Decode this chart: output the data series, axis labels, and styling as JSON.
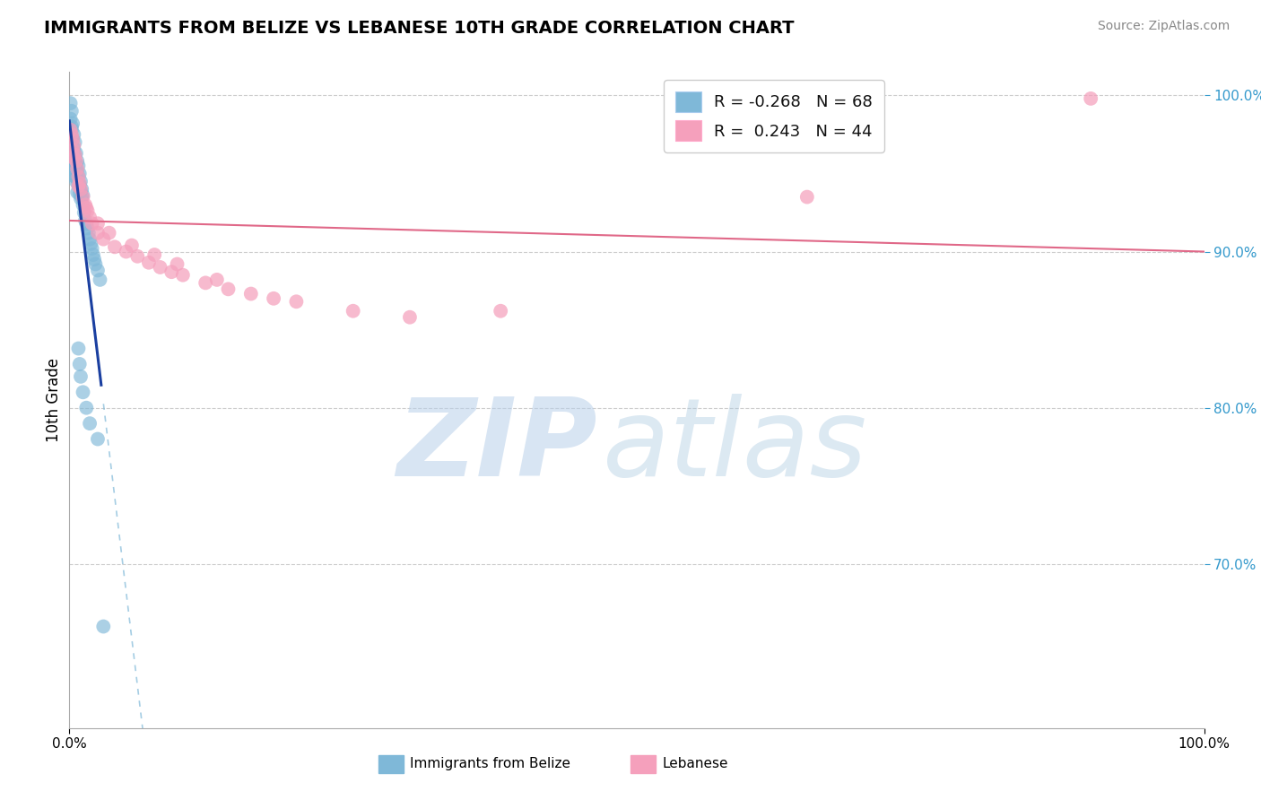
{
  "title": "IMMIGRANTS FROM BELIZE VS LEBANESE 10TH GRADE CORRELATION CHART",
  "source_text": "Source: ZipAtlas.com",
  "ylabel": "10th Grade",
  "xlim": [
    0.0,
    1.0
  ],
  "ylim": [
    0.595,
    1.015
  ],
  "y_ticks_right": [
    0.7,
    0.8,
    0.9,
    1.0
  ],
  "y_tick_labels_right": [
    "70.0%",
    "80.0%",
    "90.0%",
    "100.0%"
  ],
  "legend_r1": "R = -0.268",
  "legend_n1": "N = 68",
  "legend_r2": "R =  0.243",
  "legend_n2": "N = 44",
  "blue_color": "#7fb8d8",
  "pink_color": "#f5a0bc",
  "blue_line_color": "#1a3fa0",
  "pink_line_color": "#e06888",
  "grid_color": "#cccccc",
  "background_color": "#ffffff",
  "belize_x": [
    0.001,
    0.001,
    0.001,
    0.002,
    0.002,
    0.002,
    0.002,
    0.003,
    0.003,
    0.003,
    0.003,
    0.004,
    0.004,
    0.004,
    0.005,
    0.005,
    0.005,
    0.005,
    0.006,
    0.006,
    0.006,
    0.007,
    0.007,
    0.007,
    0.008,
    0.008,
    0.008,
    0.009,
    0.009,
    0.009,
    0.01,
    0.01,
    0.01,
    0.011,
    0.011,
    0.012,
    0.012,
    0.013,
    0.014,
    0.015,
    0.016,
    0.017,
    0.018,
    0.019,
    0.02,
    0.021,
    0.022,
    0.023,
    0.025,
    0.027,
    0.001,
    0.001,
    0.002,
    0.002,
    0.003,
    0.003,
    0.004,
    0.005,
    0.006,
    0.007,
    0.008,
    0.009,
    0.01,
    0.012,
    0.015,
    0.018,
    0.025,
    0.03
  ],
  "belize_y": [
    0.995,
    0.985,
    0.975,
    0.99,
    0.98,
    0.97,
    0.962,
    0.982,
    0.972,
    0.963,
    0.955,
    0.975,
    0.966,
    0.958,
    0.97,
    0.962,
    0.955,
    0.948,
    0.963,
    0.956,
    0.95,
    0.958,
    0.952,
    0.946,
    0.955,
    0.948,
    0.942,
    0.95,
    0.943,
    0.937,
    0.945,
    0.939,
    0.934,
    0.94,
    0.935,
    0.936,
    0.93,
    0.925,
    0.92,
    0.918,
    0.915,
    0.912,
    0.908,
    0.905,
    0.902,
    0.898,
    0.895,
    0.892,
    0.888,
    0.882,
    0.968,
    0.958,
    0.978,
    0.96,
    0.965,
    0.95,
    0.96,
    0.952,
    0.945,
    0.938,
    0.838,
    0.828,
    0.82,
    0.81,
    0.8,
    0.79,
    0.78,
    0.66
  ],
  "lebanese_x": [
    0.001,
    0.002,
    0.003,
    0.003,
    0.004,
    0.005,
    0.006,
    0.007,
    0.008,
    0.009,
    0.01,
    0.012,
    0.014,
    0.016,
    0.018,
    0.02,
    0.025,
    0.03,
    0.04,
    0.05,
    0.06,
    0.07,
    0.08,
    0.09,
    0.1,
    0.12,
    0.14,
    0.16,
    0.18,
    0.2,
    0.25,
    0.3,
    0.004,
    0.008,
    0.015,
    0.025,
    0.035,
    0.055,
    0.075,
    0.095,
    0.13,
    0.9,
    0.38,
    0.65
  ],
  "lebanese_y": [
    0.978,
    0.975,
    0.972,
    0.965,
    0.968,
    0.962,
    0.958,
    0.953,
    0.948,
    0.944,
    0.94,
    0.935,
    0.93,
    0.926,
    0.922,
    0.918,
    0.912,
    0.908,
    0.903,
    0.9,
    0.897,
    0.893,
    0.89,
    0.887,
    0.885,
    0.88,
    0.876,
    0.873,
    0.87,
    0.868,
    0.862,
    0.858,
    0.96,
    0.942,
    0.928,
    0.918,
    0.912,
    0.904,
    0.898,
    0.892,
    0.882,
    0.998,
    0.862,
    0.935
  ]
}
